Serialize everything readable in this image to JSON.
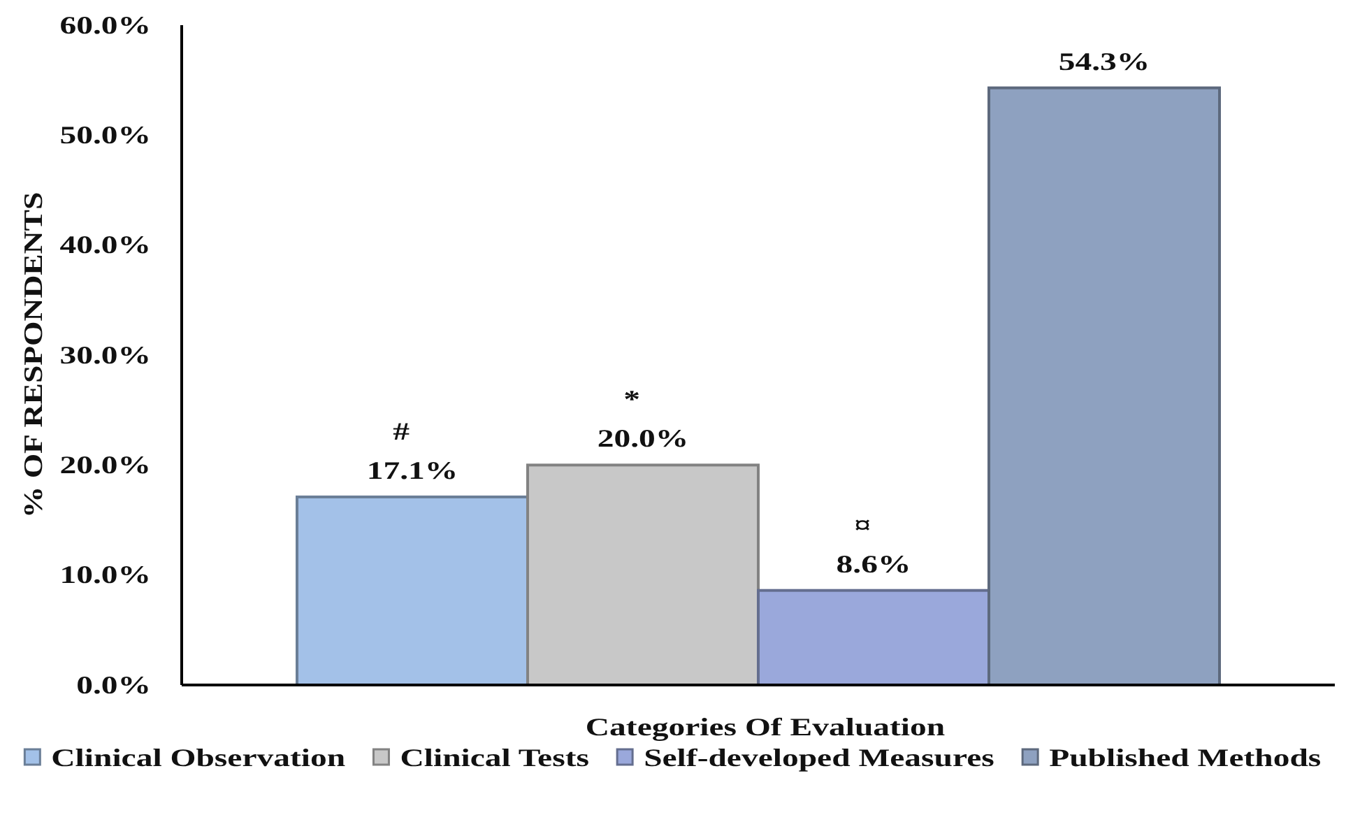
{
  "chart_data": {
    "type": "bar",
    "xlabel": "Categories Of Evaluation",
    "ylabel": "% OF RESPONDENTS",
    "categories": [
      null
    ],
    "series": [
      {
        "name": "Clinical Observation",
        "color": "#a3c1e8",
        "values": [
          17.1
        ],
        "value_labels": [
          "17.1%"
        ]
      },
      {
        "name": "Clinical Tests",
        "color": "#c8c8c8",
        "values": [
          20.0
        ],
        "value_labels": [
          "20.0%"
        ]
      },
      {
        "name": "Self-developed Measures",
        "color": "#9aa8db",
        "values": [
          8.6
        ],
        "value_labels": [
          "8.6%"
        ]
      },
      {
        "name": "Published Methods",
        "color": "#8ea1c0",
        "values": [
          54.3
        ],
        "value_labels": [
          "54.3%"
        ]
      }
    ],
    "annotations": [
      "#",
      "*",
      "¤"
    ],
    "ylim": [
      0,
      60
    ],
    "yticks": [
      {
        "value": 0,
        "label": "0.0%"
      },
      {
        "value": 10,
        "label": "10.0%"
      },
      {
        "value": 20,
        "label": "20.0%"
      },
      {
        "value": 30,
        "label": "30.0%"
      },
      {
        "value": 40,
        "label": "40.0%"
      },
      {
        "value": 50,
        "label": "50.0%"
      },
      {
        "value": 60,
        "label": "60.0%"
      }
    ],
    "grid": false,
    "legend": "bottom"
  }
}
